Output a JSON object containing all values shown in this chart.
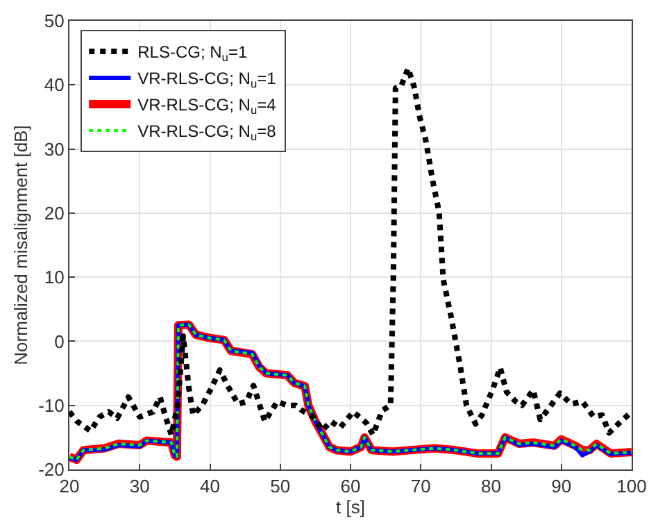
{
  "chart_data": {
    "type": "line",
    "xlabel": "t [s]",
    "ylabel": "Normalized misalignment [dB]",
    "xlim": [
      20,
      100
    ],
    "xticks": [
      20,
      30,
      40,
      50,
      60,
      70,
      80,
      90,
      100
    ],
    "ylim": [
      -20,
      50
    ],
    "yticks": [
      -20,
      -10,
      0,
      10,
      20,
      30,
      40,
      50
    ],
    "grid": true,
    "legend": "top left",
    "series": [
      {
        "name": "RLS-CG; N$_{u}$=1",
        "color": "#000000",
        "line_style": "dotted",
        "x": [
          20,
          21.1,
          23,
          24.3,
          25.6,
          26.8,
          28.4,
          30,
          31.9,
          32.9,
          33.6,
          34.5,
          35.4,
          36.2,
          37,
          37.6,
          38.9,
          40.2,
          41.4,
          42.7,
          44,
          45.2,
          46.2,
          47.8,
          49.6,
          50.9,
          52.2,
          53.1,
          54.7,
          56,
          57.2,
          58.5,
          60.4,
          62.3,
          63.2,
          64.5,
          65.7,
          66.1,
          66.4,
          67.2,
          68.2,
          69.1,
          69.8,
          70.7,
          71.7,
          72.6,
          73.2,
          74.3,
          75.6,
          76.5,
          77.8,
          78.7,
          80.3,
          81.3,
          82.2,
          83.5,
          84.4,
          86,
          87,
          88.2,
          89.8,
          91.4,
          93,
          94.6,
          95.8,
          96.8,
          98.1,
          100
        ],
        "values": [
          -11,
          -12.5,
          -14,
          -11.8,
          -11,
          -12,
          -8.7,
          -11.8,
          -11,
          -8.7,
          -11.5,
          -14.6,
          -10,
          0.8,
          -7.3,
          -11.5,
          -10,
          -7.3,
          -4.5,
          -7.3,
          -9.8,
          -9.4,
          -6.9,
          -12.5,
          -9.4,
          -10,
          -10,
          -10.8,
          -11.8,
          -13.9,
          -12.5,
          -13.5,
          -11,
          -12.8,
          -14.6,
          -10.8,
          -10,
          10.3,
          39.5,
          39.8,
          42.6,
          39.5,
          35.2,
          31.4,
          25,
          20.2,
          9.6,
          3.9,
          -3.8,
          -10,
          -12.9,
          -11.5,
          -7.3,
          -4.1,
          -7.9,
          -9.4,
          -10,
          -7.6,
          -12.2,
          -10.5,
          -8.1,
          -9.8,
          -9.4,
          -11.8,
          -11.5,
          -14.3,
          -12.9,
          -11
        ]
      },
      {
        "name": "VR-RLS-CG; N$_{u}$=1",
        "color": "#0000ff",
        "line_style": "solid",
        "x": [
          20,
          21,
          22,
          25,
          27,
          30,
          31,
          34.5,
          35,
          35.3,
          35.5,
          37,
          38,
          40,
          42,
          43,
          46,
          47,
          48,
          51,
          52,
          53.5,
          54,
          55,
          56,
          57,
          58,
          60,
          61.5,
          62,
          63,
          66,
          72,
          75,
          78,
          81,
          82,
          84,
          86,
          89,
          90,
          92,
          93,
          94,
          95,
          97,
          100
        ],
        "values": [
          -18.2,
          -18.5,
          -17,
          -16.9,
          -16.2,
          -16.4,
          -15.5,
          -15.8,
          -17.8,
          -18,
          2.5,
          2.6,
          1,
          0.5,
          0.2,
          -1.5,
          -1.8,
          -3.8,
          -5,
          -5.3,
          -6.5,
          -7,
          -10,
          -12.5,
          -14.5,
          -16.5,
          -17,
          -17.2,
          -16.5,
          -15,
          -17,
          -17.2,
          -16.7,
          -17,
          -17.5,
          -17.5,
          -15,
          -16.2,
          -16,
          -16.5,
          -15.5,
          -16.5,
          -17.8,
          -17.2,
          -16.2,
          -17.6,
          -17.4
        ]
      },
      {
        "name": "VR-RLS-CG; N$_{u}$=4",
        "color": "#ff0000",
        "line_style": "solid",
        "x": [
          20,
          21,
          22,
          25,
          27,
          30,
          31,
          34.5,
          35,
          35.3,
          35.5,
          37,
          38,
          40,
          42,
          43,
          46,
          47,
          48,
          51,
          52,
          53.5,
          54,
          55,
          56,
          57,
          58,
          60,
          61.5,
          62,
          63,
          66,
          72,
          75,
          78,
          81,
          82,
          84,
          86,
          89,
          90,
          92,
          93,
          94,
          95,
          97,
          100
        ],
        "values": [
          -18,
          -18.5,
          -17,
          -16.7,
          -16,
          -16.2,
          -15.5,
          -15.8,
          -17.8,
          -18,
          2.5,
          2.6,
          1,
          0.5,
          0.2,
          -1.5,
          -2,
          -4,
          -5,
          -5.3,
          -6.5,
          -7,
          -10,
          -12.5,
          -14.5,
          -16.5,
          -17,
          -17.2,
          -16.5,
          -15,
          -17,
          -17.2,
          -16.7,
          -17,
          -17.5,
          -17.5,
          -15,
          -16,
          -15.8,
          -16.3,
          -15.3,
          -16.3,
          -17,
          -17,
          -16,
          -17.5,
          -17.3
        ]
      },
      {
        "name": "VR-RLS-CG; N$_{u}$=8",
        "color": "#00ff00",
        "line_style": "dotted",
        "x": [
          20,
          21,
          22,
          25,
          27,
          30,
          31,
          34.5,
          35,
          35.3,
          35.5,
          37,
          38,
          40,
          42,
          43,
          46,
          47,
          48,
          51,
          52,
          53.5,
          54,
          55,
          56,
          57,
          58,
          60,
          61.5,
          62,
          63,
          66,
          72,
          75,
          78,
          81,
          82,
          84,
          86,
          89,
          90,
          92,
          93,
          94,
          95,
          97,
          100
        ],
        "values": [
          -18,
          -18.5,
          -17,
          -16.7,
          -16,
          -16.2,
          -15.5,
          -15.8,
          -17.8,
          -18,
          2.5,
          2.6,
          1,
          0.5,
          0.2,
          -1.5,
          -2,
          -4,
          -5,
          -5.3,
          -6.5,
          -7,
          -10,
          -12.5,
          -14.5,
          -16.5,
          -17,
          -17.2,
          -16.5,
          -15,
          -17,
          -17.2,
          -16.7,
          -17,
          -17.5,
          -17.5,
          -15,
          -16,
          -15.8,
          -16.3,
          -15.3,
          -16.3,
          -17,
          -17,
          -16,
          -17.5,
          -17.3
        ]
      }
    ]
  }
}
